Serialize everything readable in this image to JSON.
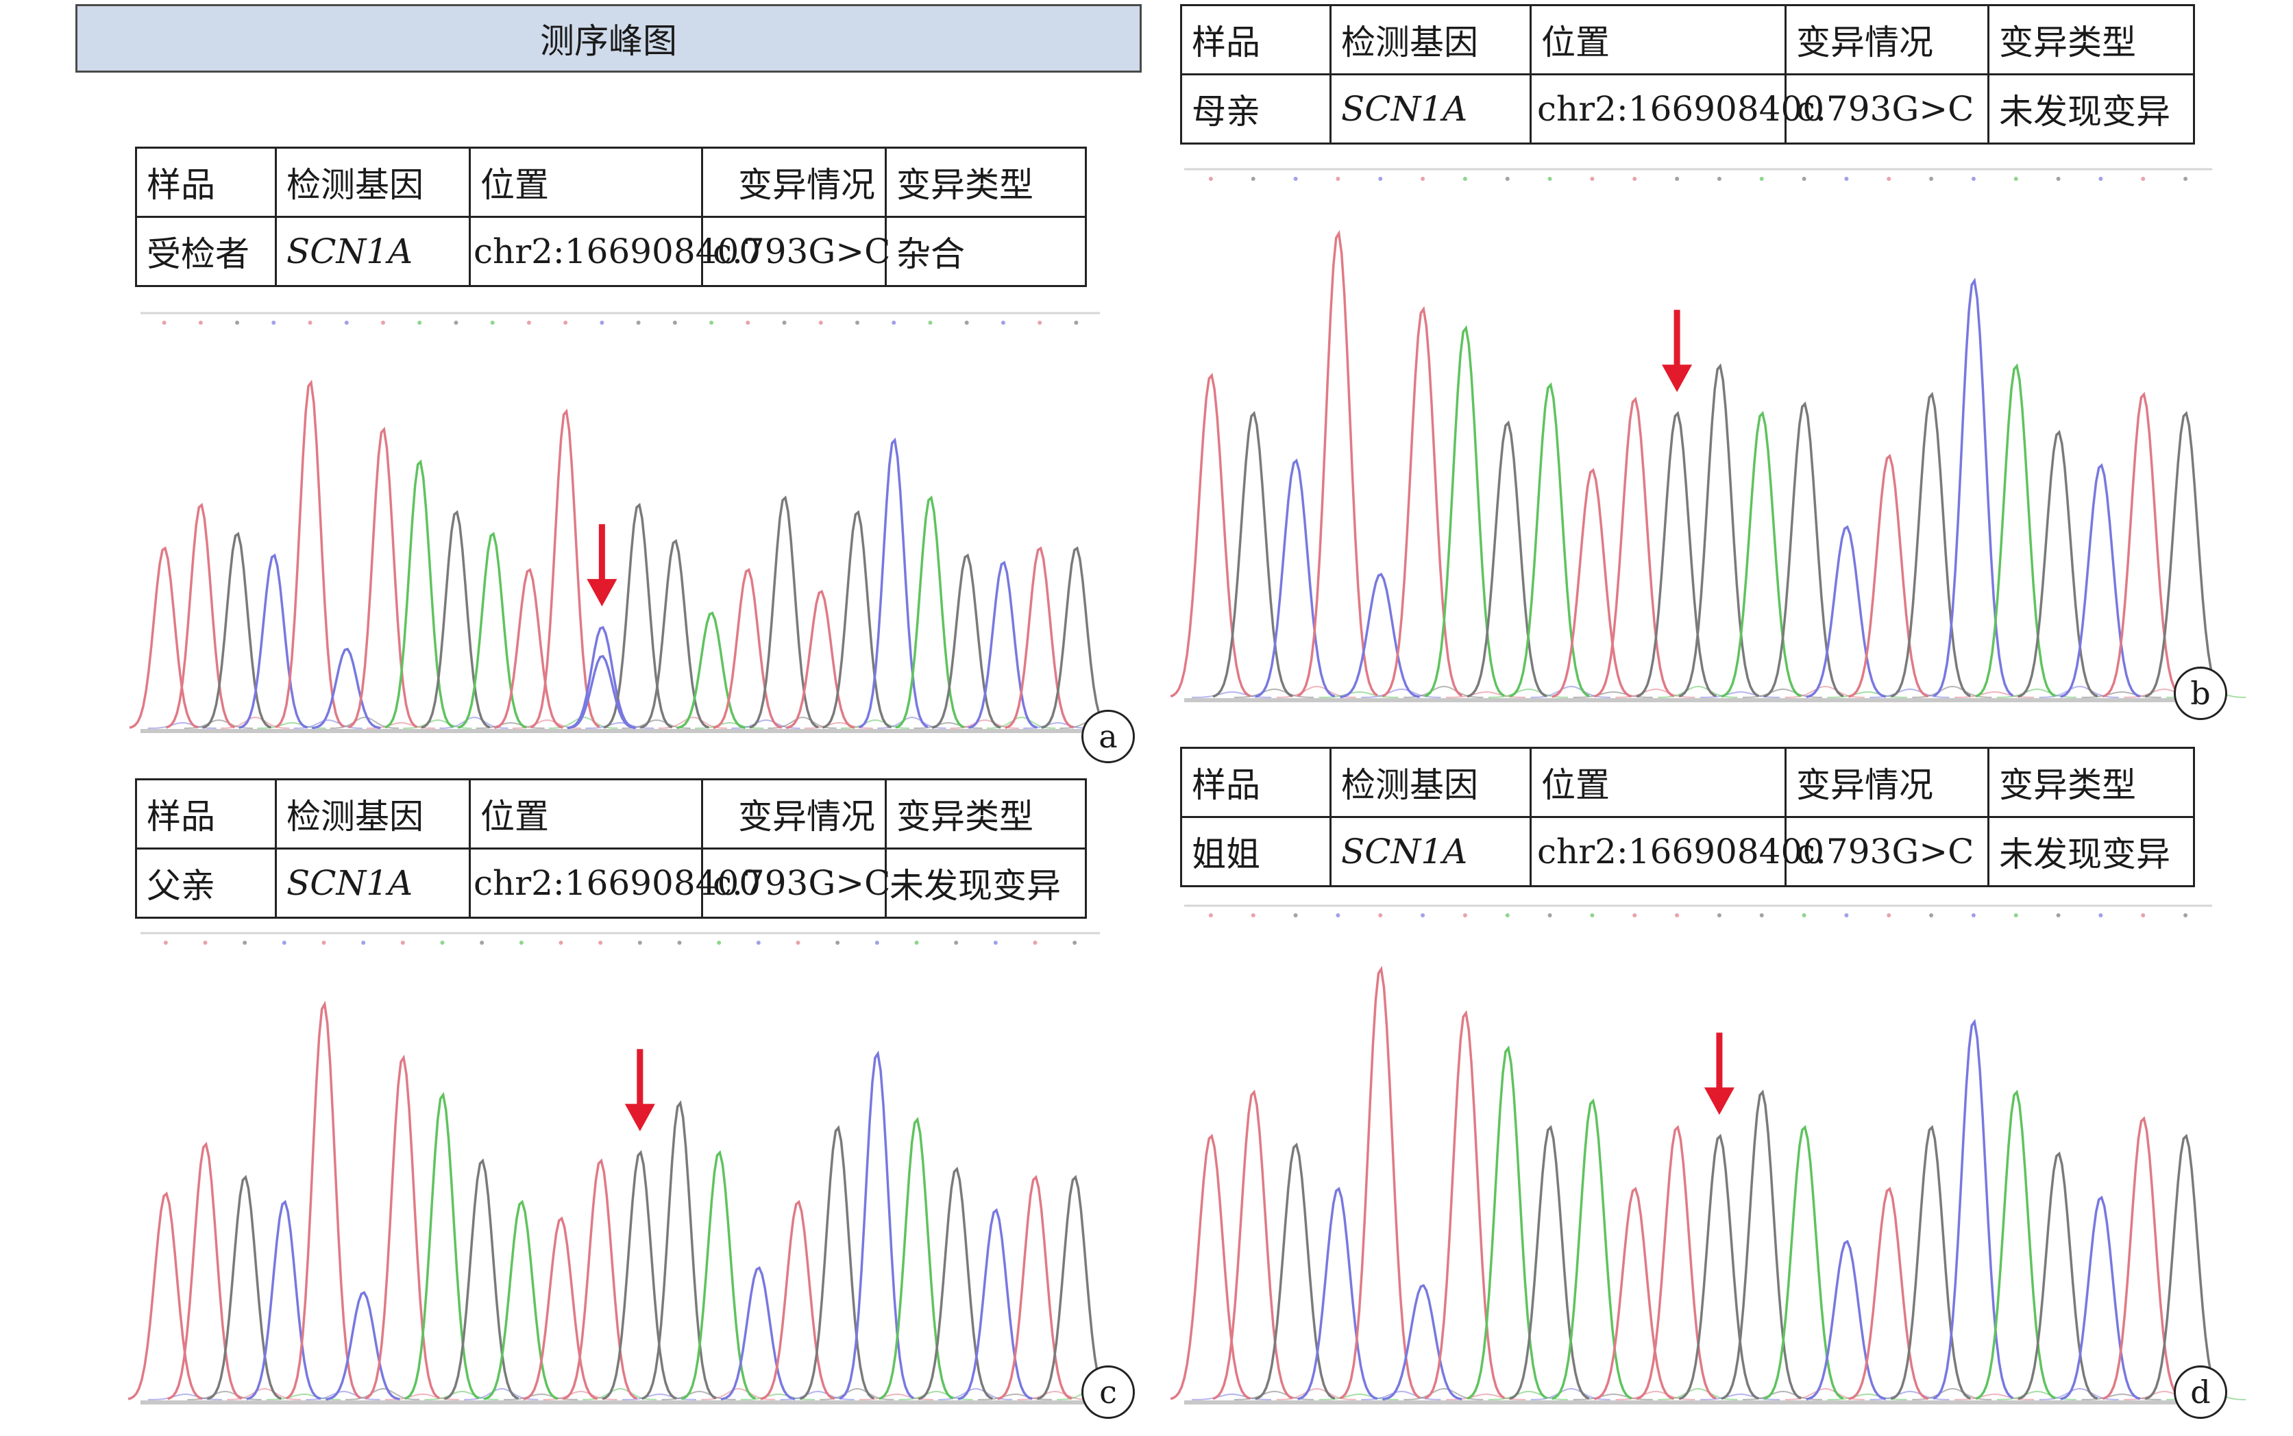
{
  "title": "测序峰图",
  "table_headers": [
    "样品",
    "检测基因",
    "位置",
    "变异情况",
    "变异类型"
  ],
  "samples": [
    {
      "panel": "a",
      "sample": "受检者",
      "gene": "SCN1A",
      "position": "chr2:166908400",
      "variant": "c.793G>C",
      "type": "杂合"
    },
    {
      "panel": "b",
      "sample": "母亲",
      "gene": "SCN1A",
      "position": "chr2:166908400",
      "variant": "c.793G>C",
      "type": "未发现变异"
    },
    {
      "panel": "c",
      "sample": "父亲",
      "gene": "SCN1A",
      "position": "chr2:166908400",
      "variant": "c.793G>C",
      "type": "未发现变异"
    },
    {
      "panel": "d",
      "sample": "姐姐",
      "gene": "SCN1A",
      "position": "chr2:166908400",
      "variant": "c.793G>C",
      "type": "未发现变异"
    }
  ],
  "colors": {
    "base_A": "#5fc35f",
    "base_C": "#7878e0",
    "base_G": "#7a7a7a",
    "base_T": "#e07a86",
    "arrow": "#e21a2c",
    "title_bg": "#cfdaea"
  },
  "chromatograms": {
    "a": {
      "peaks": [
        [
          "T",
          0.5
        ],
        [
          "T",
          0.62
        ],
        [
          "G",
          0.54
        ],
        [
          "C",
          0.48
        ],
        [
          "T",
          0.96
        ],
        [
          "C",
          0.22
        ],
        [
          "T",
          0.83
        ],
        [
          "A",
          0.74
        ],
        [
          "G",
          0.6
        ],
        [
          "A",
          0.54
        ],
        [
          "T",
          0.44
        ],
        [
          "T",
          0.88
        ],
        [
          "C",
          0.28
        ],
        [
          "G",
          0.62
        ],
        [
          "G",
          0.52
        ],
        [
          "A",
          0.32
        ],
        [
          "T",
          0.44
        ],
        [
          "G",
          0.64
        ],
        [
          "T",
          0.38
        ],
        [
          "G",
          0.6
        ],
        [
          "C",
          0.8
        ],
        [
          "A",
          0.64
        ],
        [
          "G",
          0.48
        ],
        [
          "C",
          0.46
        ],
        [
          "T",
          0.5
        ],
        [
          "G",
          0.5
        ]
      ],
      "arrow_peak": 12,
      "secondary": {
        "index": 12,
        "base": "C",
        "height": 0.2
      }
    },
    "b": {
      "peaks": [
        [
          "T",
          0.68
        ],
        [
          "G",
          0.6
        ],
        [
          "C",
          0.5
        ],
        [
          "T",
          0.98
        ],
        [
          "C",
          0.26
        ],
        [
          "T",
          0.82
        ],
        [
          "A",
          0.78
        ],
        [
          "G",
          0.58
        ],
        [
          "A",
          0.66
        ],
        [
          "T",
          0.48
        ],
        [
          "T",
          0.63
        ],
        [
          "G",
          0.6
        ],
        [
          "G",
          0.7
        ],
        [
          "A",
          0.6
        ],
        [
          "G",
          0.62
        ],
        [
          "C",
          0.36
        ],
        [
          "T",
          0.51
        ],
        [
          "G",
          0.64
        ],
        [
          "C",
          0.88
        ],
        [
          "A",
          0.7
        ],
        [
          "G",
          0.56
        ],
        [
          "C",
          0.49
        ],
        [
          "T",
          0.64
        ],
        [
          "G",
          0.6
        ]
      ],
      "arrow_peak": 11
    },
    "c": {
      "peaks": [
        [
          "T",
          0.5
        ],
        [
          "T",
          0.62
        ],
        [
          "G",
          0.54
        ],
        [
          "C",
          0.48
        ],
        [
          "T",
          0.96
        ],
        [
          "C",
          0.26
        ],
        [
          "T",
          0.83
        ],
        [
          "A",
          0.74
        ],
        [
          "G",
          0.58
        ],
        [
          "A",
          0.48
        ],
        [
          "T",
          0.44
        ],
        [
          "T",
          0.58
        ],
        [
          "G",
          0.6
        ],
        [
          "G",
          0.72
        ],
        [
          "A",
          0.6
        ],
        [
          "C",
          0.32
        ],
        [
          "T",
          0.48
        ],
        [
          "G",
          0.66
        ],
        [
          "C",
          0.84
        ],
        [
          "A",
          0.68
        ],
        [
          "G",
          0.56
        ],
        [
          "C",
          0.46
        ],
        [
          "T",
          0.54
        ],
        [
          "G",
          0.54
        ]
      ],
      "arrow_peak": 12
    },
    "d": {
      "peaks": [
        [
          "T",
          0.6
        ],
        [
          "T",
          0.7
        ],
        [
          "G",
          0.58
        ],
        [
          "C",
          0.48
        ],
        [
          "T",
          0.98
        ],
        [
          "C",
          0.26
        ],
        [
          "T",
          0.88
        ],
        [
          "A",
          0.8
        ],
        [
          "G",
          0.62
        ],
        [
          "A",
          0.68
        ],
        [
          "T",
          0.48
        ],
        [
          "T",
          0.62
        ],
        [
          "G",
          0.6
        ],
        [
          "G",
          0.7
        ],
        [
          "A",
          0.62
        ],
        [
          "C",
          0.36
        ],
        [
          "T",
          0.48
        ],
        [
          "G",
          0.62
        ],
        [
          "C",
          0.86
        ],
        [
          "A",
          0.7
        ],
        [
          "G",
          0.56
        ],
        [
          "C",
          0.46
        ],
        [
          "T",
          0.64
        ],
        [
          "G",
          0.6
        ]
      ],
      "arrow_peak": 12
    }
  }
}
